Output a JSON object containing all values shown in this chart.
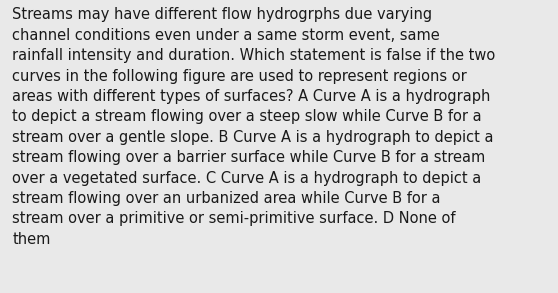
{
  "text": "Streams may have different flow hydrogrphs due varying\nchannel conditions even under a same storm event, same\nrainfall intensity and duration. Which statement is false if the two\ncurves in the following figure are used to represent regions or\nareas with different types of surfaces? A Curve A is a hydrograph\nto depict a stream flowing over a steep slow while Curve B for a\nstream over a gentle slope. B Curve A is a hydrograph to depict a\nstream flowing over a barrier surface while Curve B for a stream\nover a vegetated surface. C Curve A is a hydrograph to depict a\nstream flowing over an urbanized area while Curve B for a\nstream over a primitive or semi-primitive surface. D None of\nthem",
  "background_color": "#e9e9e9",
  "text_color": "#1a1a1a",
  "font_size": 10.5,
  "font_family": "DejaVu Sans",
  "fig_width": 5.58,
  "fig_height": 2.93,
  "dpi": 100
}
